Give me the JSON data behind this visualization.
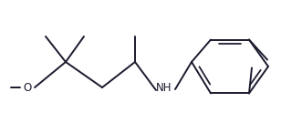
{
  "bg_color": "#ffffff",
  "line_color": "#1a1a2e",
  "line_width": 1.4,
  "figsize": [
    3.08,
    1.46
  ],
  "dpi": 100
}
